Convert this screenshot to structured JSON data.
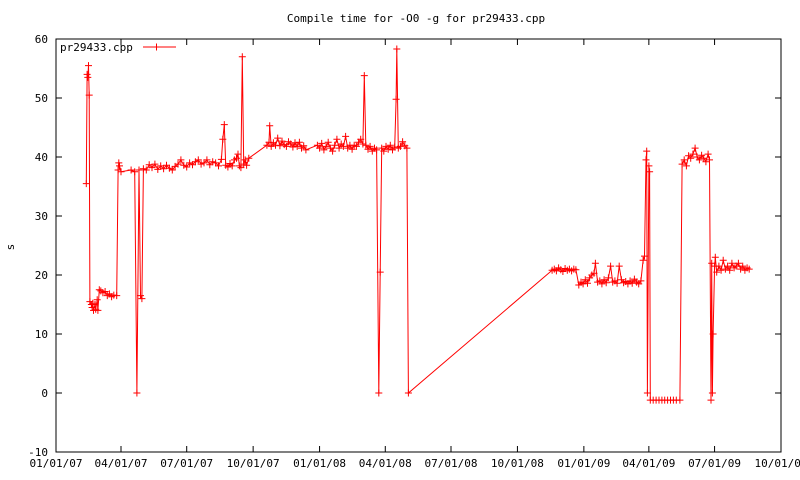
{
  "chart_data": {
    "type": "line",
    "title": "Compile time for -O0 -g for pr29433.cpp",
    "xlabel": "",
    "ylabel": "s",
    "ylim": [
      -10,
      60
    ],
    "yticks": [
      "-10",
      "0",
      "10",
      "20",
      "30",
      "40",
      "50",
      "60"
    ],
    "xlim": [
      "2007-01-01",
      "2009-10-01"
    ],
    "xticks": [
      "01/01/07",
      "04/01/07",
      "07/01/07",
      "10/01/07",
      "01/01/08",
      "04/01/08",
      "07/01/08",
      "10/01/08",
      "01/01/09",
      "04/01/09",
      "07/01/09",
      "10/01/09"
    ],
    "grid": false,
    "legend_position": "top-left",
    "series": [
      {
        "name": "pr29433.cpp",
        "color": "#ff0000",
        "marker": "plus",
        "points": [
          [
            "2007-02-12",
            35.5
          ],
          [
            "2007-02-13",
            54.0
          ],
          [
            "2007-02-14",
            53.5
          ],
          [
            "2007-02-15",
            55.5
          ],
          [
            "2007-02-16",
            50.5
          ],
          [
            "2007-02-17",
            15.5
          ],
          [
            "2007-02-19",
            15.0
          ],
          [
            "2007-02-20",
            14.5
          ],
          [
            "2007-02-21",
            15.2
          ],
          [
            "2007-02-22",
            14.0
          ],
          [
            "2007-02-24",
            15.0
          ],
          [
            "2007-02-25",
            14.2
          ],
          [
            "2007-02-27",
            15.8
          ],
          [
            "2007-02-28",
            14.0
          ],
          [
            "2007-03-02",
            17.5
          ],
          [
            "2007-03-04",
            17.3
          ],
          [
            "2007-03-07",
            17.0
          ],
          [
            "2007-03-10",
            17.2
          ],
          [
            "2007-03-13",
            16.5
          ],
          [
            "2007-03-16",
            16.8
          ],
          [
            "2007-03-19",
            16.3
          ],
          [
            "2007-03-22",
            16.6
          ],
          [
            "2007-03-26",
            16.5
          ],
          [
            "2007-03-28",
            37.8
          ],
          [
            "2007-03-29",
            39.0
          ],
          [
            "2007-03-30",
            38.5
          ],
          [
            "2007-04-01",
            37.5
          ],
          [
            "2007-04-15",
            37.8
          ],
          [
            "2007-04-20",
            37.5
          ],
          [
            "2007-04-23",
            0
          ],
          [
            "2007-04-26",
            37.8
          ],
          [
            "2007-04-28",
            16.5
          ],
          [
            "2007-04-30",
            16.0
          ],
          [
            "2007-05-02",
            38.0
          ],
          [
            "2007-05-06",
            37.8
          ],
          [
            "2007-05-10",
            38.7
          ],
          [
            "2007-05-14",
            38.2
          ],
          [
            "2007-05-18",
            38.8
          ],
          [
            "2007-05-22",
            37.9
          ],
          [
            "2007-05-26",
            38.5
          ],
          [
            "2007-05-30",
            38.0
          ],
          [
            "2007-06-03",
            38.6
          ],
          [
            "2007-06-07",
            38.1
          ],
          [
            "2007-06-11",
            37.8
          ],
          [
            "2007-06-15",
            38.4
          ],
          [
            "2007-06-19",
            38.8
          ],
          [
            "2007-06-23",
            39.5
          ],
          [
            "2007-06-27",
            38.6
          ],
          [
            "2007-07-01",
            38.3
          ],
          [
            "2007-07-05",
            39.0
          ],
          [
            "2007-07-09",
            38.7
          ],
          [
            "2007-07-13",
            39.2
          ],
          [
            "2007-07-17",
            39.5
          ],
          [
            "2007-07-21",
            38.8
          ],
          [
            "2007-07-25",
            39.0
          ],
          [
            "2007-07-29",
            39.5
          ],
          [
            "2007-08-02",
            38.7
          ],
          [
            "2007-08-06",
            39.2
          ],
          [
            "2007-08-10",
            39.0
          ],
          [
            "2007-08-14",
            38.5
          ],
          [
            "2007-08-18",
            39.6
          ],
          [
            "2007-08-20",
            43.0
          ],
          [
            "2007-08-22",
            45.5
          ],
          [
            "2007-08-24",
            38.6
          ],
          [
            "2007-08-27",
            38.3
          ],
          [
            "2007-08-30",
            38.9
          ],
          [
            "2007-09-02",
            38.5
          ],
          [
            "2007-09-05",
            39.5
          ],
          [
            "2007-09-08",
            39.8
          ],
          [
            "2007-09-10",
            40.5
          ],
          [
            "2007-09-12",
            38.5
          ],
          [
            "2007-09-14",
            38.2
          ],
          [
            "2007-09-16",
            57.0
          ],
          [
            "2007-09-18",
            38.8
          ],
          [
            "2007-09-20",
            39.5
          ],
          [
            "2007-09-22",
            38.6
          ],
          [
            "2007-09-25",
            39.8
          ],
          [
            "2007-10-20",
            42.0
          ],
          [
            "2007-10-23",
            42.5
          ],
          [
            "2007-10-24",
            45.3
          ],
          [
            "2007-10-26",
            41.8
          ],
          [
            "2007-10-29",
            42.4
          ],
          [
            "2007-11-01",
            42.0
          ],
          [
            "2007-11-04",
            43.2
          ],
          [
            "2007-11-07",
            41.9
          ],
          [
            "2007-11-10",
            42.7
          ],
          [
            "2007-11-13",
            42.1
          ],
          [
            "2007-11-16",
            41.8
          ],
          [
            "2007-11-19",
            42.6
          ],
          [
            "2007-11-22",
            42.2
          ],
          [
            "2007-11-25",
            41.7
          ],
          [
            "2007-11-28",
            42.4
          ],
          [
            "2007-12-01",
            41.8
          ],
          [
            "2007-12-04",
            42.5
          ],
          [
            "2007-12-07",
            41.5
          ],
          [
            "2007-12-10",
            41.9
          ],
          [
            "2007-12-13",
            41.2
          ],
          [
            "2007-12-29",
            42.0
          ],
          [
            "2008-01-01",
            41.5
          ],
          [
            "2008-01-04",
            42.3
          ],
          [
            "2008-01-07",
            41.2
          ],
          [
            "2008-01-10",
            41.8
          ],
          [
            "2008-01-13",
            42.5
          ],
          [
            "2008-01-16",
            41.5
          ],
          [
            "2008-01-19",
            41.0
          ],
          [
            "2008-01-22",
            42.0
          ],
          [
            "2008-01-25",
            43.0
          ],
          [
            "2008-01-28",
            41.5
          ],
          [
            "2008-01-31",
            42.2
          ],
          [
            "2008-02-03",
            41.8
          ],
          [
            "2008-02-06",
            43.5
          ],
          [
            "2008-02-09",
            41.5
          ],
          [
            "2008-02-12",
            42.0
          ],
          [
            "2008-02-15",
            41.3
          ],
          [
            "2008-02-18",
            42.0
          ],
          [
            "2008-02-21",
            41.8
          ],
          [
            "2008-02-24",
            42.5
          ],
          [
            "2008-02-27",
            43.0
          ],
          [
            "2008-03-01",
            42.2
          ],
          [
            "2008-03-03",
            53.8
          ],
          [
            "2008-03-05",
            42.0
          ],
          [
            "2008-03-08",
            41.3
          ],
          [
            "2008-03-11",
            41.8
          ],
          [
            "2008-03-14",
            41.0
          ],
          [
            "2008-03-17",
            41.5
          ],
          [
            "2008-03-20",
            41.2
          ],
          [
            "2008-03-23",
            0
          ],
          [
            "2008-03-25",
            20.5
          ],
          [
            "2008-03-27",
            41.5
          ],
          [
            "2008-03-30",
            41.0
          ],
          [
            "2008-04-02",
            41.8
          ],
          [
            "2008-04-05",
            41.3
          ],
          [
            "2008-04-08",
            42.0
          ],
          [
            "2008-04-11",
            41.2
          ],
          [
            "2008-04-14",
            41.7
          ],
          [
            "2008-04-16",
            49.8
          ],
          [
            "2008-04-17",
            58.3
          ],
          [
            "2008-04-19",
            41.5
          ],
          [
            "2008-04-22",
            41.8
          ],
          [
            "2008-04-25",
            42.6
          ],
          [
            "2008-04-28",
            41.9
          ],
          [
            "2008-05-01",
            41.5
          ],
          [
            "2008-05-03",
            0
          ],
          [
            "2008-11-18",
            20.8
          ],
          [
            "2008-11-21",
            21.0
          ],
          [
            "2008-11-24",
            20.7
          ],
          [
            "2008-11-27",
            21.2
          ],
          [
            "2008-11-30",
            20.9
          ],
          [
            "2008-12-03",
            20.6
          ],
          [
            "2008-12-06",
            21.1
          ],
          [
            "2008-12-09",
            20.8
          ],
          [
            "2008-12-12",
            21.0
          ],
          [
            "2008-12-15",
            20.7
          ],
          [
            "2008-12-18",
            21.0
          ],
          [
            "2008-12-21",
            20.9
          ],
          [
            "2008-12-25",
            18.3
          ],
          [
            "2008-12-28",
            18.8
          ],
          [
            "2008-12-31",
            18.5
          ],
          [
            "2009-01-03",
            19.2
          ],
          [
            "2009-01-06",
            18.6
          ],
          [
            "2009-01-09",
            19.5
          ],
          [
            "2009-01-12",
            20.0
          ],
          [
            "2009-01-15",
            20.3
          ],
          [
            "2009-01-17",
            22.0
          ],
          [
            "2009-01-20",
            18.8
          ],
          [
            "2009-01-23",
            19.0
          ],
          [
            "2009-01-26",
            18.5
          ],
          [
            "2009-01-29",
            19.2
          ],
          [
            "2009-02-01",
            18.7
          ],
          [
            "2009-02-04",
            19.5
          ],
          [
            "2009-02-07",
            21.5
          ],
          [
            "2009-02-10",
            18.8
          ],
          [
            "2009-02-13",
            19.0
          ],
          [
            "2009-02-16",
            18.6
          ],
          [
            "2009-02-19",
            21.5
          ],
          [
            "2009-02-22",
            19.2
          ],
          [
            "2009-02-25",
            18.7
          ],
          [
            "2009-02-28",
            18.9
          ],
          [
            "2009-03-03",
            18.5
          ],
          [
            "2009-03-06",
            19.0
          ],
          [
            "2009-03-09",
            18.6
          ],
          [
            "2009-03-12",
            19.3
          ],
          [
            "2009-03-15",
            18.8
          ],
          [
            "2009-03-18",
            18.5
          ],
          [
            "2009-03-21",
            19.0
          ],
          [
            "2009-03-24",
            22.5
          ],
          [
            "2009-03-26",
            23.2
          ],
          [
            "2009-03-28",
            39.5
          ],
          [
            "2009-03-29",
            41.0
          ],
          [
            "2009-03-30",
            0
          ],
          [
            "2009-04-01",
            38.5
          ],
          [
            "2009-04-02",
            37.5
          ],
          [
            "2009-04-03",
            -1.2
          ],
          [
            "2009-04-07",
            -1.2
          ],
          [
            "2009-04-11",
            -1.2
          ],
          [
            "2009-04-15",
            -1.2
          ],
          [
            "2009-04-19",
            -1.2
          ],
          [
            "2009-04-23",
            -1.2
          ],
          [
            "2009-04-27",
            -1.2
          ],
          [
            "2009-05-01",
            -1.2
          ],
          [
            "2009-05-05",
            -1.2
          ],
          [
            "2009-05-09",
            -1.2
          ],
          [
            "2009-05-14",
            -1.2
          ],
          [
            "2009-05-17",
            38.8
          ],
          [
            "2009-05-20",
            39.5
          ],
          [
            "2009-05-23",
            38.5
          ],
          [
            "2009-05-26",
            40.2
          ],
          [
            "2009-05-29",
            39.8
          ],
          [
            "2009-06-01",
            40.5
          ],
          [
            "2009-06-04",
            41.5
          ],
          [
            "2009-06-07",
            40.0
          ],
          [
            "2009-06-10",
            39.5
          ],
          [
            "2009-06-13",
            40.3
          ],
          [
            "2009-06-16",
            39.8
          ],
          [
            "2009-06-19",
            39.2
          ],
          [
            "2009-06-22",
            40.5
          ],
          [
            "2009-06-24",
            39.5
          ],
          [
            "2009-06-26",
            -1.2
          ],
          [
            "2009-06-27",
            22.0
          ],
          [
            "2009-06-28",
            0
          ],
          [
            "2009-06-29",
            10.0
          ],
          [
            "2009-07-01",
            21.5
          ],
          [
            "2009-07-02",
            23.0
          ],
          [
            "2009-07-04",
            20.5
          ],
          [
            "2009-07-07",
            21.5
          ],
          [
            "2009-07-10",
            20.8
          ],
          [
            "2009-07-13",
            22.5
          ],
          [
            "2009-07-16",
            21.0
          ],
          [
            "2009-07-19",
            21.5
          ],
          [
            "2009-07-22",
            20.8
          ],
          [
            "2009-07-25",
            22.0
          ],
          [
            "2009-07-28",
            21.2
          ],
          [
            "2009-07-31",
            21.5
          ],
          [
            "2009-08-03",
            22.0
          ],
          [
            "2009-08-06",
            21.0
          ],
          [
            "2009-08-09",
            21.5
          ],
          [
            "2009-08-12",
            20.8
          ],
          [
            "2009-08-15",
            21.2
          ],
          [
            "2009-08-18",
            21.0
          ]
        ]
      }
    ]
  }
}
